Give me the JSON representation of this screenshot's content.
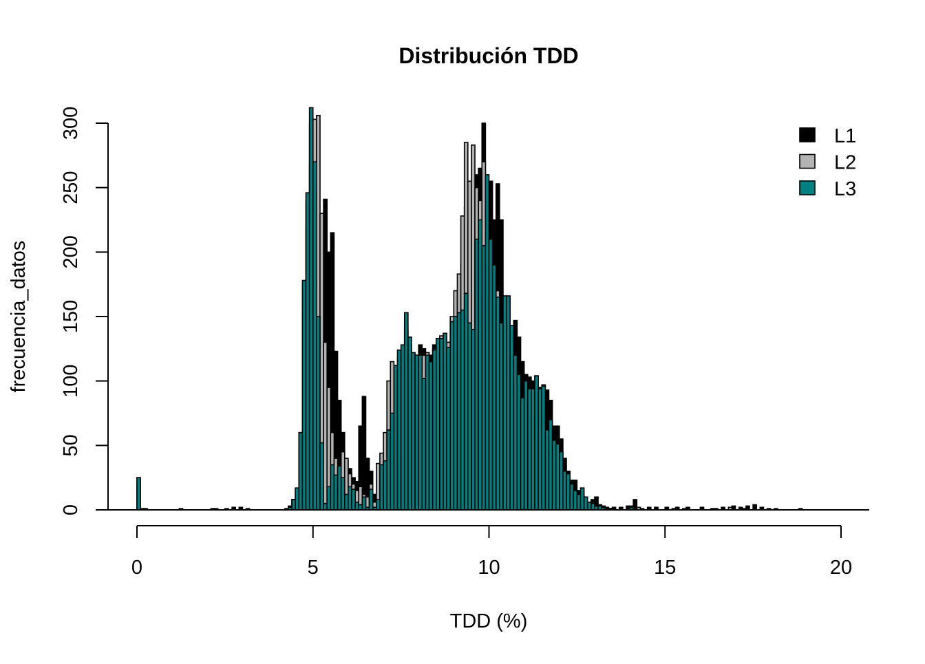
{
  "chart_data": {
    "type": "bar",
    "title": "Distribución TDD",
    "xlabel": "TDD (%)",
    "ylabel": "frecuencia_datos",
    "xlim": [
      0,
      20
    ],
    "ylim": [
      0,
      300
    ],
    "xticks": [
      "0",
      "5",
      "10",
      "15",
      "20"
    ],
    "yticks": [
      "0",
      "50",
      "100",
      "150",
      "200",
      "250",
      "300"
    ],
    "bin_width": 0.1,
    "bins_start": 4.3,
    "legend_position": "top-right",
    "series": [
      {
        "name": "L1",
        "color": "#000000",
        "values": [
          3,
          8,
          14,
          50,
          160,
          220,
          270,
          240,
          200,
          220,
          241,
          200,
          215,
          123,
          85,
          60,
          38,
          32,
          25,
          22,
          65,
          88,
          40,
          30,
          12,
          25,
          20,
          30,
          60,
          80,
          95,
          110,
          115,
          130,
          120,
          118,
          120,
          128,
          125,
          122,
          120,
          128,
          130,
          130,
          133,
          130,
          140,
          160,
          170,
          190,
          235,
          195,
          255,
          260,
          265,
          300,
          240,
          255,
          225,
          253,
          225,
          165,
          155,
          140,
          147,
          134,
          115,
          105,
          103,
          100,
          104,
          95,
          97,
          93,
          85,
          65,
          65,
          55,
          40,
          30,
          23,
          23,
          15,
          10,
          8,
          6,
          8,
          10,
          4,
          3,
          2,
          1
        ],
        "tail": [
          [
            0.0,
            25
          ],
          [
            0.1,
            1
          ],
          [
            0.2,
            1
          ],
          [
            1.2,
            1
          ],
          [
            2.1,
            1
          ],
          [
            2.2,
            1
          ],
          [
            2.5,
            1
          ],
          [
            2.7,
            2
          ],
          [
            2.9,
            2
          ],
          [
            3.1,
            1
          ],
          [
            4.2,
            1
          ],
          [
            13.5,
            2
          ],
          [
            13.7,
            2
          ],
          [
            13.9,
            3
          ],
          [
            14.0,
            3
          ],
          [
            14.1,
            8
          ],
          [
            14.3,
            1
          ],
          [
            14.5,
            2
          ],
          [
            14.7,
            2
          ],
          [
            15.0,
            2
          ],
          [
            15.3,
            2
          ],
          [
            15.6,
            2
          ],
          [
            16.0,
            2
          ],
          [
            16.3,
            1
          ],
          [
            16.6,
            2
          ],
          [
            16.9,
            3
          ],
          [
            17.1,
            2
          ],
          [
            17.3,
            3
          ],
          [
            17.5,
            4
          ],
          [
            17.7,
            2
          ],
          [
            17.9,
            1
          ],
          [
            18.1,
            1
          ],
          [
            18.8,
            1
          ]
        ]
      },
      {
        "name": "L2",
        "color": "#B3B3B3",
        "values": [
          2,
          8,
          16,
          58,
          175,
          240,
          300,
          303,
          306,
          230,
          130,
          95,
          60,
          40,
          30,
          45,
          40,
          28,
          20,
          15,
          18,
          12,
          10,
          20,
          6,
          36,
          44,
          60,
          100,
          115,
          95,
          118,
          120,
          140,
          128,
          115,
          118,
          115,
          120,
          122,
          112,
          125,
          133,
          135,
          135,
          130,
          150,
          170,
          183,
          228,
          285,
          255,
          283,
          250,
          240,
          270,
          190,
          200,
          185,
          170,
          140,
          140,
          130,
          120,
          110,
          95,
          85,
          90,
          88,
          90,
          95,
          90,
          92,
          60,
          65,
          50,
          45,
          40,
          28,
          25,
          18,
          14,
          10,
          14,
          8,
          5,
          4,
          3,
          2,
          2,
          1,
          1
        ],
        "tail": [
          [
            0.0,
            20
          ],
          [
            14.2,
            2
          ],
          [
            15.5,
            1
          ],
          [
            16.8,
            2
          ]
        ]
      },
      {
        "name": "L3",
        "color": "#008080",
        "values": [
          2,
          8,
          17,
          60,
          178,
          246,
          312,
          270,
          150,
          52,
          5,
          18,
          35,
          27,
          34,
          25,
          12,
          18,
          16,
          6,
          4,
          10,
          2,
          16,
          2,
          8,
          35,
          38,
          62,
          75,
          112,
          124,
          128,
          153,
          134,
          122,
          120,
          120,
          102,
          120,
          115,
          124,
          133,
          133,
          137,
          126,
          146,
          150,
          153,
          155,
          168,
          145,
          140,
          210,
          225,
          205,
          260,
          210,
          190,
          165,
          145,
          166,
          166,
          143,
          120,
          105,
          87,
          100,
          94,
          94,
          104,
          94,
          96,
          62,
          70,
          54,
          51,
          45,
          30,
          28,
          20,
          15,
          12,
          17,
          10,
          6,
          5,
          3,
          3,
          2,
          1,
          1
        ],
        "tail": [
          [
            0.0,
            25
          ],
          [
            14.0,
            2
          ],
          [
            15.2,
            1
          ],
          [
            16.4,
            1
          ],
          [
            17.2,
            1
          ]
        ]
      }
    ]
  }
}
